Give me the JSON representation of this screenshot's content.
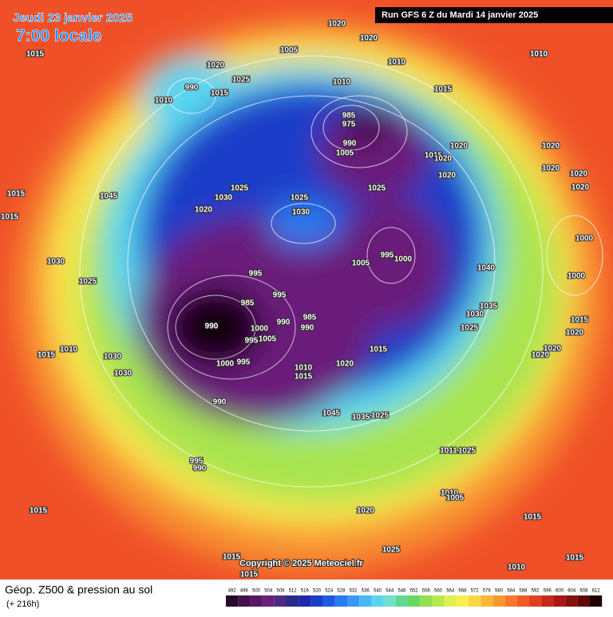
{
  "header": {
    "date": "Jeudi 23 janvier 2025",
    "time": "7:00 locale",
    "run": "Run GFS 6 Z du Mardi 14 janvier 2025"
  },
  "copyright": "Copyright © 2025 Meteociel.fr",
  "caption": {
    "title": "Géop. Z500 & pression au sol",
    "subtitle": "(+ 216h)"
  },
  "scale": {
    "values": [
      492,
      496,
      500,
      504,
      508,
      512,
      516,
      520,
      524,
      528,
      532,
      536,
      540,
      544,
      548,
      552,
      556,
      560,
      564,
      568,
      572,
      576,
      580,
      584,
      588,
      592,
      596,
      600,
      604,
      608,
      612
    ],
    "colors": [
      "#2a0a2a",
      "#461049",
      "#5a1565",
      "#6b1e7a",
      "#4b2a86",
      "#2a2a8a",
      "#1a2aa8",
      "#1a3ec8",
      "#1e5ae0",
      "#2a7af0",
      "#3a98f5",
      "#45b8f5",
      "#5ad5f0",
      "#70e0d0",
      "#60d890",
      "#6ad860",
      "#90e050",
      "#b8e84a",
      "#e0f050",
      "#f8f050",
      "#f8d848",
      "#f8b838",
      "#f89830",
      "#f87830",
      "#f05a28",
      "#e04020",
      "#c82818",
      "#a81818",
      "#881010",
      "#600808",
      "#200000"
    ]
  },
  "isobar_labels": [
    1020,
    1020,
    1005,
    1010,
    1010,
    1015,
    1020,
    1025,
    1015,
    990,
    1010,
    1010,
    1015,
    985,
    975,
    990,
    1005,
    1020,
    1020,
    1015,
    1020,
    1020,
    1020,
    1020,
    1020,
    1025,
    1025,
    1025,
    1030,
    1045,
    1030,
    1015,
    1015,
    1020,
    1000,
    995,
    1000,
    1005,
    1040,
    1030,
    1025,
    1000,
    995,
    985,
    995,
    990,
    985,
    990,
    990,
    1035,
    1030,
    1025,
    1015,
    1020,
    1000,
    995,
    1005,
    1015,
    1015,
    1010,
    1030,
    1020,
    1020,
    1020,
    1010,
    1015,
    1030,
    1000,
    995,
    990,
    1045,
    1035,
    1025,
    1011,
    1025,
    995,
    990,
    1010,
    1005,
    1015,
    1020,
    1025,
    1015,
    1015,
    1010,
    1015,
    1015
  ]
}
